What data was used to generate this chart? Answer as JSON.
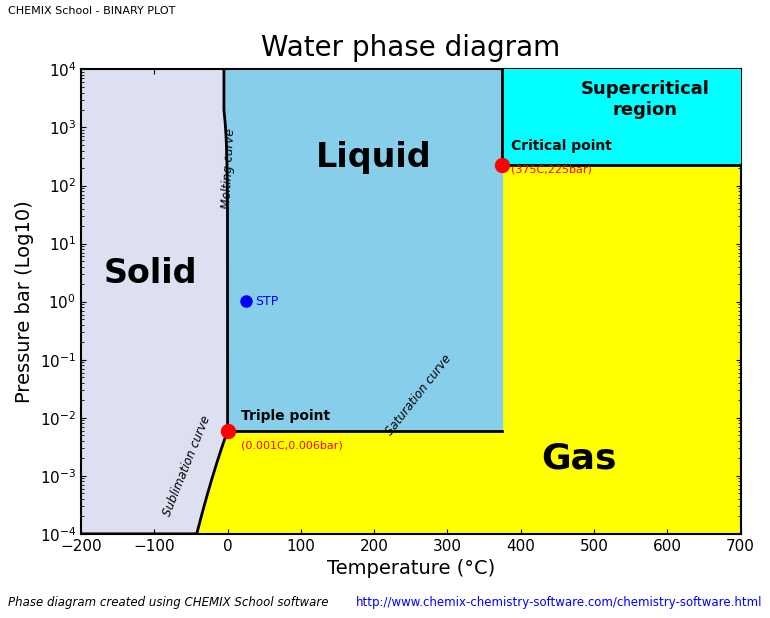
{
  "title": "Water phase diagram",
  "xlabel": "Temperature (°C)",
  "ylabel": "Pressure bar (Log10)",
  "xlim": [
    -200,
    700
  ],
  "ylim_log": [
    0.0001,
    10000.0
  ],
  "title_fontsize": 20,
  "label_fontsize": 14,
  "tick_fontsize": 11,
  "colors": {
    "solid": "#dce0f0",
    "liquid": "#87CEEB",
    "gas": "#FFFF00",
    "supercritical": "#00FFFF",
    "boundary": "#000000"
  },
  "triple_point": {
    "T": 0.001,
    "P": 0.006,
    "label": "Triple point",
    "sublabel": "(0.001C,0.006bar)"
  },
  "critical_point": {
    "T": 375,
    "P": 225,
    "label": "Critical point",
    "sublabel": "(375C,225bar)"
  },
  "stp": {
    "T": 25,
    "P": 1.01325,
    "label": "STP"
  },
  "footer_left": "Phase diagram created using CHEMIX School software",
  "footer_right": "http://www.chemix-chemistry-software.com/chemistry-software.html",
  "header": "CHEMIX School - BINARY PLOT"
}
